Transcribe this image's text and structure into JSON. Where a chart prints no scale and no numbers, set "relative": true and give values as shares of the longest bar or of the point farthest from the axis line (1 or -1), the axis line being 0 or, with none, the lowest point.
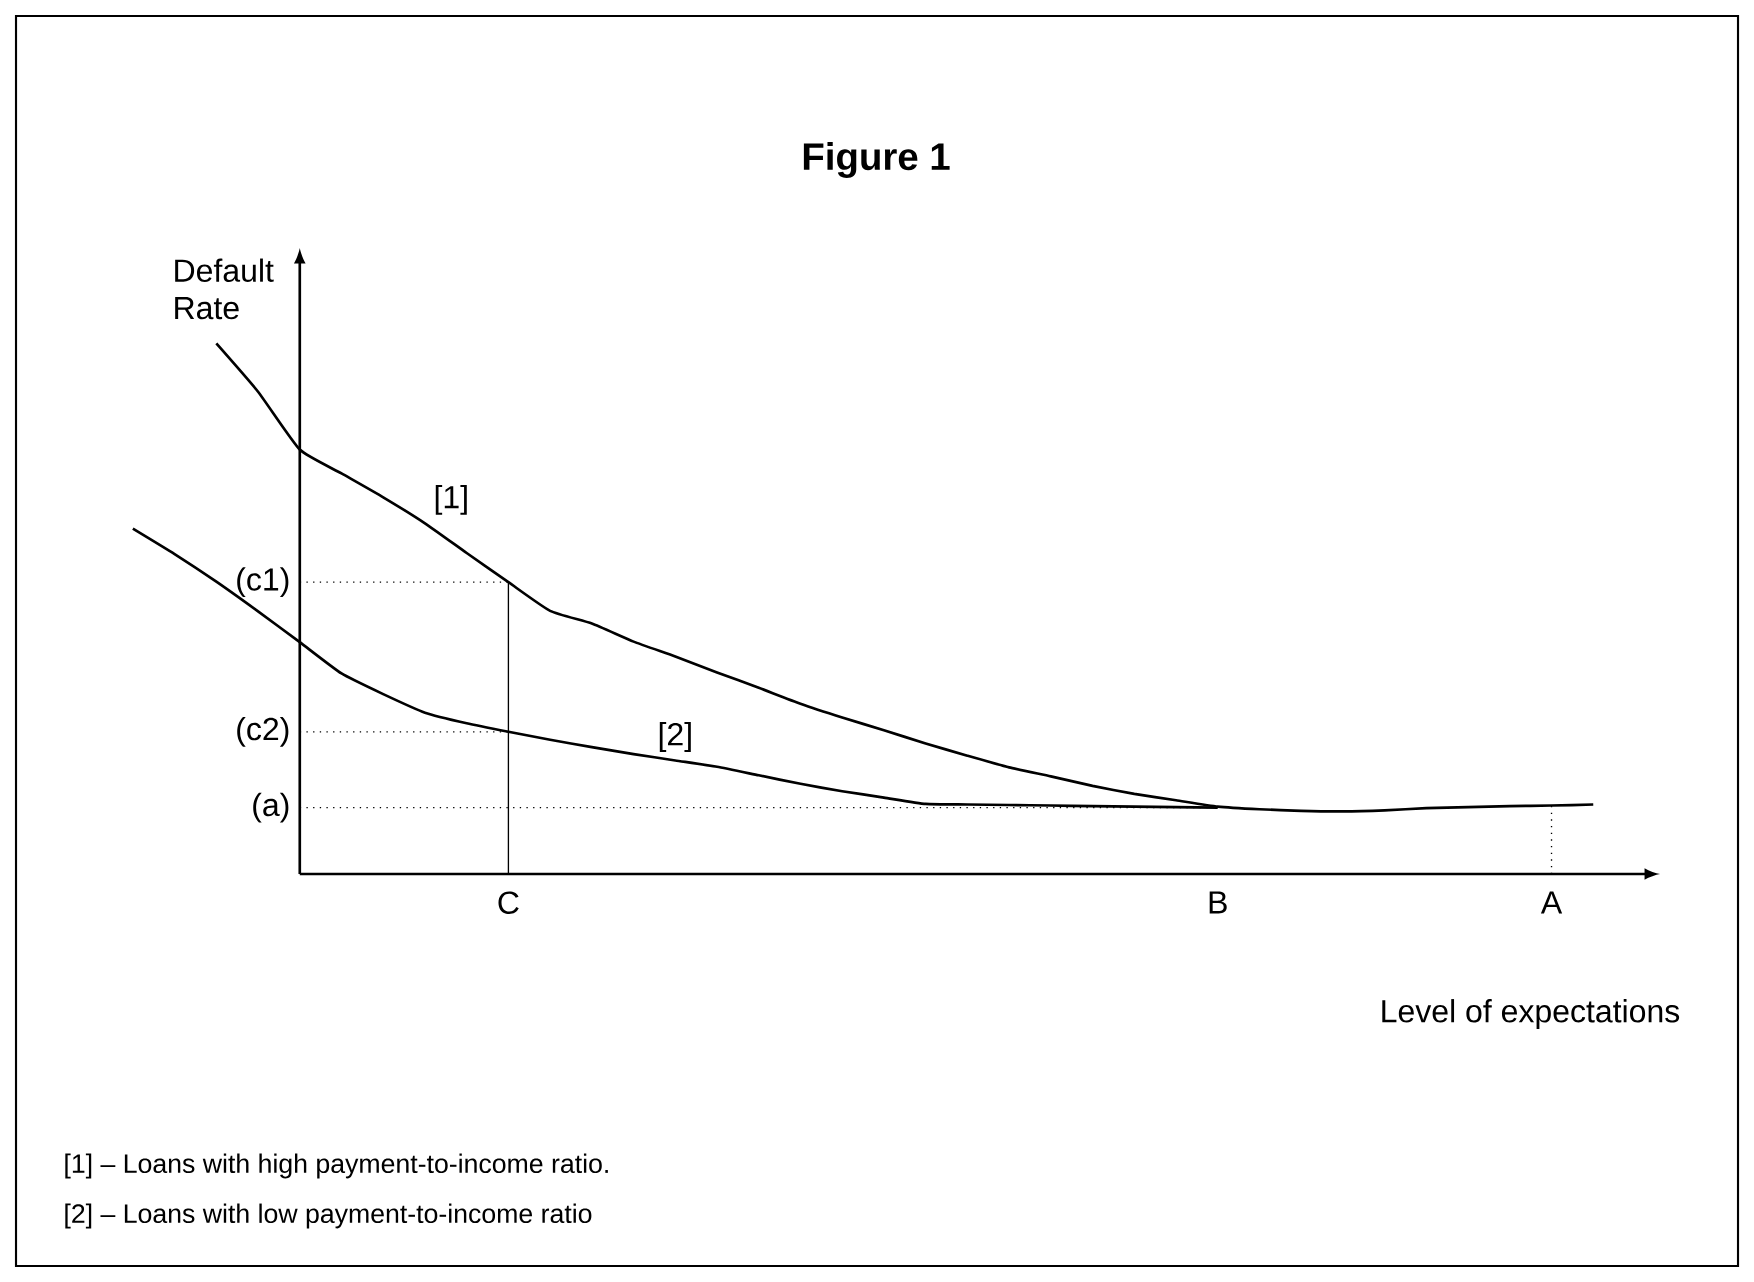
{
  "chart_data": {
    "type": "line",
    "title": "Figure 1",
    "xlabel": "Level of expectations",
    "ylabel": "Default Rate",
    "relative": true,
    "legend": false,
    "categories": [
      null,
      null,
      null,
      null,
      null,
      null,
      null,
      null,
      null,
      "C",
      null,
      null,
      null,
      null,
      null,
      null,
      null,
      null,
      null,
      null,
      null,
      null,
      null,
      null,
      null,
      null,
      "B",
      null,
      null,
      null,
      null,
      null,
      null,
      null,
      "A",
      null
    ],
    "series": [
      {
        "name": "[1]",
        "color": "#000000",
        "values": [
          null,
          null,
          1.0,
          0.909,
          0.8,
          0.755,
          0.71,
          0.661,
          0.605,
          0.55,
          0.496,
          0.472,
          0.438,
          0.41,
          0.38,
          0.351,
          0.321,
          0.295,
          0.271,
          0.246,
          0.223,
          0.201,
          0.184,
          0.166,
          0.151,
          0.139,
          0.127,
          0.122,
          0.119,
          0.118,
          0.12,
          0.124,
          0.126,
          0.128,
          0.129,
          0.131
        ]
      },
      {
        "name": "[2]",
        "color": "#000000",
        "values": [
          0.651,
          0.603,
          0.551,
          0.495,
          0.437,
          0.378,
          0.339,
          0.304,
          0.284,
          0.268,
          0.253,
          0.239,
          0.226,
          0.214,
          0.202,
          0.186,
          0.17,
          0.156,
          0.144,
          0.132,
          0.131,
          0.13,
          0.129,
          0.128,
          0.127,
          0.126,
          0.125,
          null,
          null,
          null,
          null,
          null,
          null,
          null,
          null,
          null
        ]
      }
    ],
    "ref_lines": [
      {
        "axis": "y",
        "value": 0.55,
        "label": "(c1)",
        "line_style": "dotted"
      },
      {
        "axis": "y",
        "value": 0.268,
        "label": "(c2)",
        "line_style": "dotted"
      },
      {
        "axis": "y",
        "value": 0.125,
        "label": "(a)",
        "line_style": "dotted"
      },
      {
        "axis": "x",
        "value": "C",
        "line_style": "solid"
      },
      {
        "axis": "x",
        "value": "A",
        "line_style": "dotted"
      }
    ],
    "annotations": [
      "[1] – Loans with high payment-to-income ratio.",
      "[2] – Loans with low payment-to-income ratio"
    ]
  }
}
